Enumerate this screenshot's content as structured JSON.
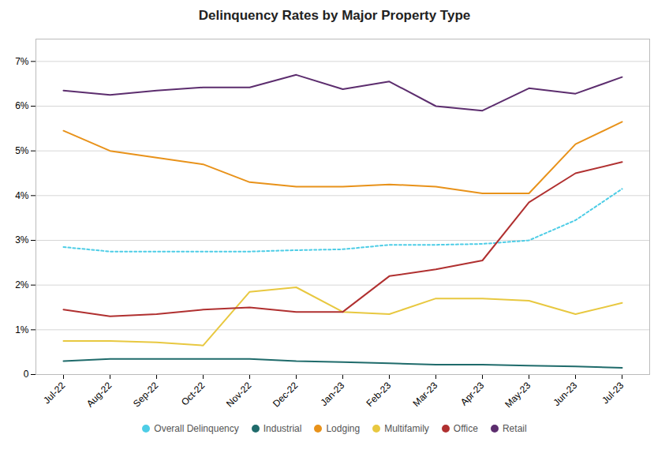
{
  "chart_data": {
    "type": "line",
    "title": "Delinquency Rates by Major Property Type",
    "categories": [
      "Jul-22",
      "Aug-22",
      "Sep-22",
      "Oct-22",
      "Nov-22",
      "Dec-22",
      "Jan-23",
      "Feb-23",
      "Mar-23",
      "Apr-23",
      "May-23",
      "Jun-23",
      "Jul-23"
    ],
    "series": [
      {
        "name": "Overall Delinquency",
        "color": "#4ECDE6",
        "line_style": "dotted",
        "values": [
          2.85,
          2.75,
          2.75,
          2.75,
          2.75,
          2.78,
          2.8,
          2.9,
          2.9,
          2.92,
          3.0,
          3.45,
          4.15
        ]
      },
      {
        "name": "Industrial",
        "color": "#1F6B6B",
        "line_style": "solid",
        "values": [
          0.3,
          0.35,
          0.35,
          0.35,
          0.35,
          0.3,
          0.28,
          0.25,
          0.22,
          0.22,
          0.2,
          0.18,
          0.15
        ]
      },
      {
        "name": "Lodging",
        "color": "#E8921A",
        "line_style": "solid",
        "values": [
          5.45,
          5.0,
          4.85,
          4.7,
          4.3,
          4.2,
          4.2,
          4.25,
          4.2,
          4.05,
          4.05,
          5.15,
          5.65
        ]
      },
      {
        "name": "Multifamily",
        "color": "#E8C840",
        "line_style": "solid",
        "values": [
          0.75,
          0.75,
          0.72,
          0.65,
          1.85,
          1.95,
          1.4,
          1.35,
          1.7,
          1.7,
          1.65,
          1.35,
          1.6
        ]
      },
      {
        "name": "Office",
        "color": "#B03030",
        "line_style": "solid",
        "values": [
          1.45,
          1.3,
          1.35,
          1.45,
          1.5,
          1.4,
          1.4,
          2.2,
          2.35,
          2.55,
          3.85,
          4.5,
          4.75
        ]
      },
      {
        "name": "Retail",
        "color": "#5C2D6E",
        "line_style": "solid",
        "values": [
          6.35,
          6.25,
          6.35,
          6.42,
          6.42,
          6.7,
          6.38,
          6.55,
          6.0,
          5.9,
          6.4,
          6.28,
          6.65
        ]
      }
    ],
    "ylim": [
      0,
      7.5
    ],
    "yticks": [
      0,
      {
        "value": 1,
        "label": "1%"
      },
      {
        "value": 2,
        "label": "2%"
      },
      {
        "value": 3,
        "label": "3%"
      },
      {
        "value": 4,
        "label": "4%"
      },
      {
        "value": 5,
        "label": "5%"
      },
      {
        "value": 6,
        "label": "6%"
      },
      {
        "value": 7,
        "label": "7%"
      }
    ],
    "grid": true,
    "legend": "bottom"
  }
}
